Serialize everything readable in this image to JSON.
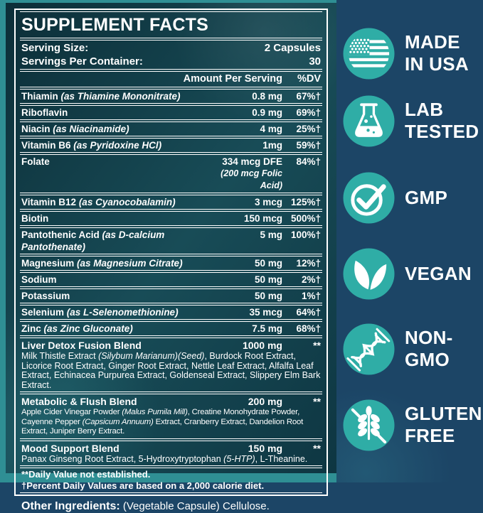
{
  "colors": {
    "badge_circle": "#2fada6",
    "right_background": "#1c4566",
    "panel_frame": "#2f8f94",
    "panel_background": "#103844",
    "text": "#ffffff"
  },
  "panel": {
    "title": "SUPPLEMENT FACTS",
    "serving": [
      {
        "label": "Serving Size:",
        "value": "2 Capsules"
      },
      {
        "label": "Servings Per Container:",
        "value": "30"
      }
    ],
    "columns": {
      "amount": "Amount Per Serving",
      "dv": "%DV"
    },
    "nutrients": [
      {
        "name": "Thiamin",
        "form": "(as Thiamine Mononitrate)",
        "amount": "0.8 mg",
        "dv": "67%†"
      },
      {
        "name": "Riboflavin",
        "form": "",
        "amount": "0.9 mg",
        "dv": "69%†"
      },
      {
        "name": "Niacin",
        "form": "(as Niacinamide)",
        "amount": "4 mg",
        "dv": "25%†"
      },
      {
        "name": "Vitamin B6",
        "form": "(as Pyridoxine HCl)",
        "amount": "1mg",
        "dv": "59%†"
      },
      {
        "name": "Folate",
        "form": "",
        "amount": "334 mcg DFE",
        "amount2": "(200 mcg Folic Acid)",
        "dv": "84%†"
      },
      {
        "name": "Vitamin B12",
        "form": "(as Cyanocobalamin)",
        "amount": "3 mcg",
        "dv": "125%†"
      },
      {
        "name": "Biotin",
        "form": "",
        "amount": "150 mcg",
        "dv": "500%†"
      },
      {
        "name": "Pantothenic Acid",
        "form": "(as D-calcium Pantothenate)",
        "amount": "5 mg",
        "dv": "100%†"
      },
      {
        "name": "Magnesium",
        "form": "(as Magnesium Citrate)",
        "amount": "50 mg",
        "dv": "12%†"
      },
      {
        "name": "Sodium",
        "form": "",
        "amount": "50 mg",
        "dv": "2%†"
      },
      {
        "name": "Potassium",
        "form": "",
        "amount": "50 mg",
        "dv": "1%†"
      },
      {
        "name": "Selenium",
        "form": "(as L-Selenomethionine)",
        "amount": "35 mcg",
        "dv": "64%†"
      },
      {
        "name": "Zinc",
        "form": "(as Zinc Gluconate)",
        "amount": "7.5 mg",
        "dv": "68%†"
      }
    ],
    "blends": [
      {
        "name": "Liver Detox Fusion Blend",
        "amount": "1000 mg",
        "dv": "**",
        "narrow": false,
        "desc": [
          {
            "t": "Milk Thistle Extract ",
            "i": false
          },
          {
            "t": "(Silybum Marianum)(Seed)",
            "i": true
          },
          {
            "t": ", Burdock Root Extract, Licorice Root Extract, Ginger Root Extract, Nettle Leaf Extract, Alfalfa Leaf Extract, Echinacea Purpurea Extract, Goldenseal Extract, Slippery Elm Bark Extract.",
            "i": false
          }
        ]
      },
      {
        "name": "Metabolic & Flush Blend",
        "amount": "200 mg",
        "dv": "**",
        "narrow": true,
        "desc": [
          {
            "t": "Apple Cider Vinegar Powder ",
            "i": false
          },
          {
            "t": "(Malus Pumila Mill)",
            "i": true
          },
          {
            "t": ", Creatine Monohydrate Powder, Cayenne Pepper ",
            "i": false
          },
          {
            "t": "(Capsicum Annuum)",
            "i": true
          },
          {
            "t": " Extract, Cranberry Extract, Dandelion Root Extract, Juniper Berry Extract.",
            "i": false
          }
        ]
      },
      {
        "name": "Mood Support Blend",
        "amount": "150 mg",
        "dv": "**",
        "narrow": false,
        "desc": [
          {
            "t": "Panax Ginseng Root Extract, 5-Hydroxytryptophan ",
            "i": false
          },
          {
            "t": "(5-HTP)",
            "i": true
          },
          {
            "t": ", L-Theanine.",
            "i": false
          }
        ]
      }
    ],
    "footnotes": [
      "**Daily Value not established.",
      "†Percent Daily Values are based on a 2,000 calorie diet."
    ],
    "other_ingredients": {
      "label": "Other Ingredients:",
      "value": " (Vegetable Capsule) Cellulose."
    }
  },
  "badges": [
    {
      "icon": "usa-flag-icon",
      "lines": [
        "MADE",
        "IN USA"
      ]
    },
    {
      "icon": "lab-flask-icon",
      "lines": [
        "LAB",
        "TESTED"
      ]
    },
    {
      "icon": "gmp-check-icon",
      "lines": [
        "GMP"
      ]
    },
    {
      "icon": "vegan-leaves-icon",
      "lines": [
        "VEGAN"
      ]
    },
    {
      "icon": "non-gmo-dna-icon",
      "lines": [
        "NON-",
        "GMO"
      ]
    },
    {
      "icon": "gluten-free-wheat-icon",
      "lines": [
        "GLUTEN",
        "FREE"
      ]
    }
  ]
}
